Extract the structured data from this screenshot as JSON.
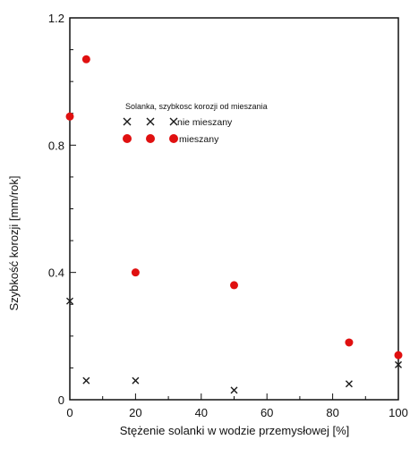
{
  "chart_data": {
    "type": "scatter",
    "title": "",
    "xlabel": "Stężenie solanki w wodzie przemysłowej [%]",
    "ylabel": "Szybkość korozji [mm/rok]",
    "xlim": [
      0,
      100
    ],
    "ylim": [
      0,
      1.2
    ],
    "xticks": [
      "0",
      "20",
      "40",
      "60",
      "80",
      "100"
    ],
    "yticks": [
      "0",
      "0.4",
      "0.8",
      "1.2"
    ],
    "legend": {
      "title": "Solanka, szybkosc korozji od mieszania",
      "placement": "upper-center"
    },
    "series": [
      {
        "name": "nie mieszany",
        "marker": "x",
        "color": "#1a1a1a",
        "points": [
          {
            "x": 0,
            "y": 0.31
          },
          {
            "x": 5,
            "y": 0.06
          },
          {
            "x": 20,
            "y": 0.06
          },
          {
            "x": 50,
            "y": 0.03
          },
          {
            "x": 85,
            "y": 0.05
          },
          {
            "x": 100,
            "y": 0.11
          }
        ]
      },
      {
        "name": "mieszany",
        "marker": "circle",
        "color": "#e01010",
        "points": [
          {
            "x": 0,
            "y": 0.89
          },
          {
            "x": 5,
            "y": 1.07
          },
          {
            "x": 20,
            "y": 0.4
          },
          {
            "x": 50,
            "y": 0.36
          },
          {
            "x": 85,
            "y": 0.18
          },
          {
            "x": 100,
            "y": 0.14
          }
        ]
      }
    ]
  }
}
